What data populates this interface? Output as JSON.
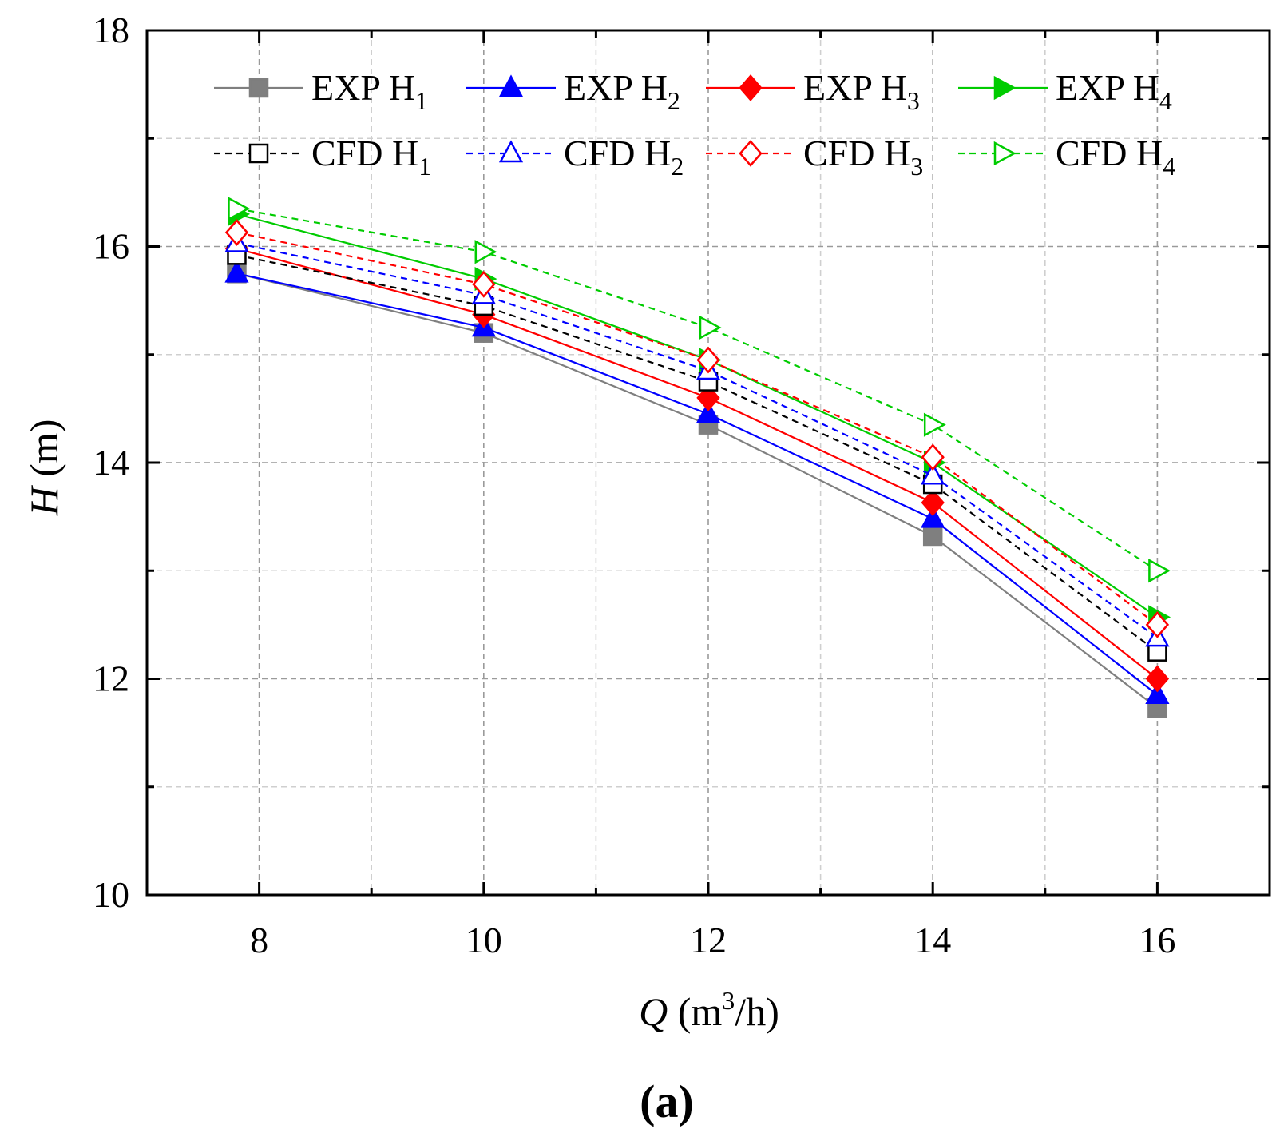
{
  "chart_data": {
    "type": "line",
    "panel_label": "(a)",
    "xlabel": {
      "symbol": "Q",
      "unit_pre": " (m",
      "unit_sup": "3",
      "unit_post": "/h)"
    },
    "ylabel": {
      "symbol": "H",
      "unit": " (m)"
    },
    "xlim": [
      7,
      17
    ],
    "ylim": [
      10,
      18
    ],
    "xticks": [
      8,
      10,
      12,
      14,
      16
    ],
    "yticks": [
      10,
      12,
      14,
      16,
      18
    ],
    "grid": true,
    "legend_position": "top",
    "series": [
      {
        "name": "EXP H",
        "sub": "1",
        "color": "#7f7f7f",
        "dash": false,
        "marker": "square",
        "filled": true,
        "x": [
          7.8,
          10,
          12,
          14,
          16
        ],
        "y": [
          15.75,
          15.2,
          14.35,
          13.32,
          11.73
        ]
      },
      {
        "name": "EXP H",
        "sub": "2",
        "color": "#0000ff",
        "dash": false,
        "marker": "triangle-up",
        "filled": true,
        "x": [
          7.8,
          10,
          12,
          14,
          16
        ],
        "y": [
          15.75,
          15.25,
          14.45,
          13.48,
          11.85
        ]
      },
      {
        "name": "EXP H",
        "sub": "3",
        "color": "#ff0000",
        "dash": false,
        "marker": "diamond",
        "filled": true,
        "x": [
          7.8,
          10,
          12,
          14,
          16
        ],
        "y": [
          15.98,
          15.37,
          14.6,
          13.63,
          12.0
        ]
      },
      {
        "name": "EXP H",
        "sub": "4",
        "color": "#00cc00",
        "dash": false,
        "marker": "triangle-right",
        "filled": true,
        "x": [
          7.8,
          10,
          12,
          14,
          16
        ],
        "y": [
          16.3,
          15.7,
          14.95,
          14.0,
          12.57
        ]
      },
      {
        "name": "CFD H",
        "sub": "1",
        "color": "#000000",
        "dash": true,
        "marker": "square",
        "filled": false,
        "x": [
          7.8,
          10,
          12,
          14,
          16
        ],
        "y": [
          15.92,
          15.45,
          14.75,
          13.8,
          12.25
        ]
      },
      {
        "name": "CFD H",
        "sub": "2",
        "color": "#0000ff",
        "dash": true,
        "marker": "triangle-up",
        "filled": false,
        "x": [
          7.8,
          10,
          12,
          14,
          16
        ],
        "y": [
          16.03,
          15.55,
          14.85,
          13.88,
          12.38
        ]
      },
      {
        "name": "CFD H",
        "sub": "3",
        "color": "#ff0000",
        "dash": true,
        "marker": "diamond",
        "filled": false,
        "x": [
          7.8,
          10,
          12,
          14,
          16
        ],
        "y": [
          16.13,
          15.65,
          14.95,
          14.05,
          12.5
        ]
      },
      {
        "name": "CFD H",
        "sub": "4",
        "color": "#00cc00",
        "dash": true,
        "marker": "triangle-right",
        "filled": false,
        "x": [
          7.8,
          10,
          12,
          14,
          16
        ],
        "y": [
          16.35,
          15.95,
          15.25,
          14.35,
          13.0
        ]
      }
    ]
  }
}
